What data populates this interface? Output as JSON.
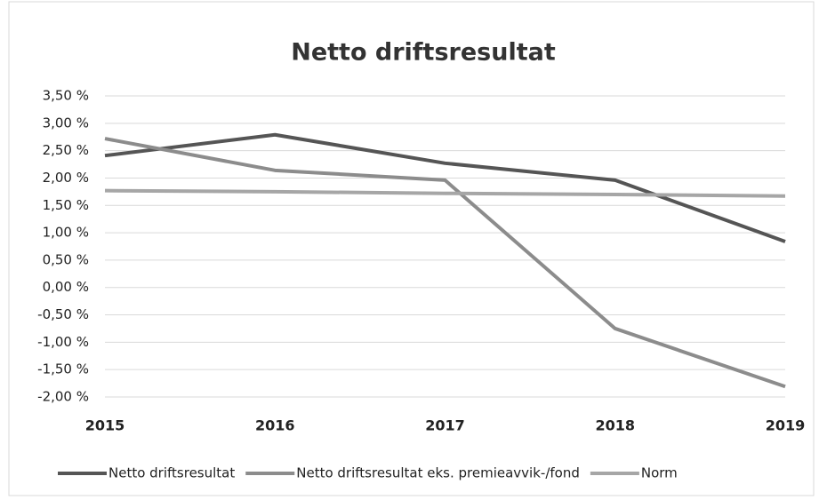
{
  "chart_data": {
    "type": "line",
    "title": "Netto driftsresultat",
    "categories": [
      "2015",
      "2016",
      "2017",
      "2018",
      "2019"
    ],
    "series": [
      {
        "name": "Netto driftsresultat",
        "color": "#555555",
        "values": [
          2.41,
          2.79,
          2.27,
          1.96,
          0.84
        ]
      },
      {
        "name": "Netto driftsresultat eks. premieavvik-/fond",
        "color": "#8c8c8c",
        "values": [
          2.72,
          2.14,
          1.96,
          -0.75,
          -1.81
        ]
      },
      {
        "name": "Norm",
        "color": "#a6a6a6",
        "values": [
          1.77,
          1.75,
          1.72,
          1.7,
          1.67
        ]
      }
    ],
    "ylim": [
      -2,
      3.5
    ],
    "yticks": [
      {
        "value": -2,
        "label": "-2,00 %"
      },
      {
        "value": -1.5,
        "label": "-1,50 %"
      },
      {
        "value": -1,
        "label": "-1,00 %"
      },
      {
        "value": -0.5,
        "label": "-0,50 %"
      },
      {
        "value": 0,
        "label": "0,00 %"
      },
      {
        "value": 0.5,
        "label": "0,50 %"
      },
      {
        "value": 1,
        "label": "1,00 %"
      },
      {
        "value": 1.5,
        "label": "1,50 %"
      },
      {
        "value": 2,
        "label": "2,00 %"
      },
      {
        "value": 2.5,
        "label": "2,50 %"
      },
      {
        "value": 3,
        "label": "3,00 %"
      },
      {
        "value": 3.5,
        "label": "3,50 %"
      }
    ],
    "grid": true,
    "legend": "bottom"
  }
}
